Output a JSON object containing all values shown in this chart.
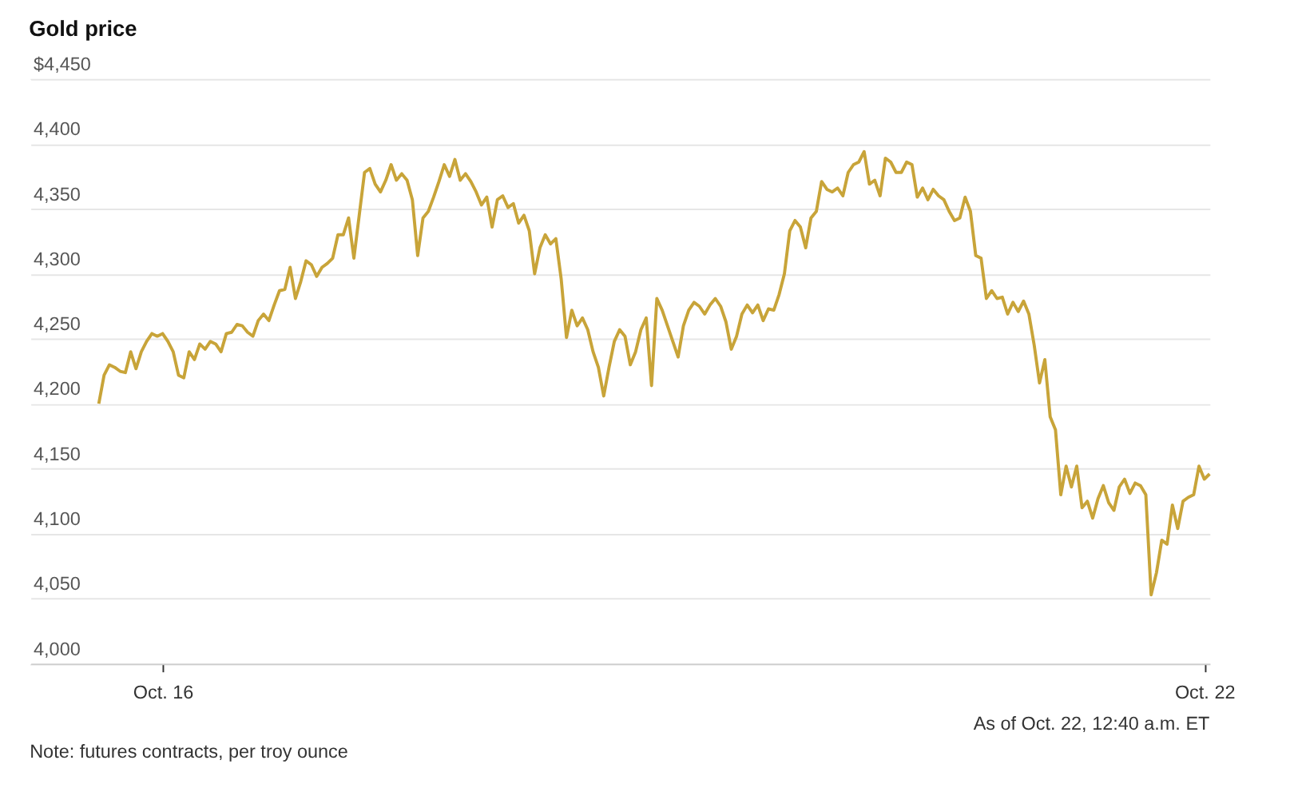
{
  "chart_data": {
    "type": "line",
    "title": "Gold price",
    "annotations": [
      "As of Oct. 22, 12:40 a.m. ET",
      "Note: futures contracts, per troy ounce"
    ],
    "categories": [
      null,
      null,
      null,
      null,
      null,
      null,
      null,
      null,
      null,
      null,
      null,
      null,
      "Oct. 16",
      null,
      null,
      null,
      null,
      null,
      null,
      null,
      null,
      null,
      null,
      null,
      null,
      null,
      null,
      null,
      null,
      null,
      null,
      null,
      null,
      null,
      null,
      null,
      null,
      null,
      null,
      null,
      null,
      null,
      null,
      null,
      null,
      null,
      null,
      null,
      null,
      null,
      null,
      null,
      null,
      null,
      null,
      null,
      null,
      null,
      null,
      null,
      null,
      null,
      null,
      null,
      null,
      null,
      null,
      null,
      null,
      null,
      null,
      null,
      null,
      null,
      null,
      null,
      null,
      null,
      null,
      null,
      null,
      null,
      null,
      null,
      null,
      null,
      null,
      null,
      null,
      null,
      null,
      null,
      null,
      null,
      null,
      null,
      null,
      null,
      null,
      null,
      null,
      null,
      null,
      null,
      null,
      null,
      null,
      null,
      null,
      null,
      null,
      null,
      null,
      null,
      null,
      null,
      null,
      null,
      null,
      null,
      null,
      null,
      null,
      null,
      null,
      null,
      null,
      null,
      null,
      null,
      null,
      null,
      null,
      null,
      null,
      null,
      null,
      null,
      null,
      null,
      null,
      null,
      null,
      null,
      null,
      null,
      null,
      null,
      null,
      null,
      null,
      null,
      null,
      null,
      null,
      null,
      null,
      null,
      null,
      null,
      null,
      null,
      null,
      null,
      null,
      null,
      null,
      null,
      null,
      null,
      null,
      null,
      null,
      null,
      null,
      null,
      null,
      null,
      null,
      null,
      null,
      null,
      null,
      null,
      null,
      null,
      null,
      null,
      null,
      null,
      null,
      null,
      null,
      null,
      null,
      null,
      null,
      null,
      null,
      null,
      null,
      null,
      null,
      null,
      null,
      null,
      null,
      null,
      "Oct. 22",
      null
    ],
    "series": [
      {
        "color": "#c8a439",
        "values": [
          4200,
          4222,
          4230,
          4228,
          4225,
          4224,
          4240,
          4227,
          4240,
          4248,
          4254,
          4252,
          4254,
          4248,
          4240,
          4222,
          4220,
          4240,
          4234,
          4246,
          4242,
          4248,
          4246,
          4240,
          4254,
          4255,
          4261,
          4260,
          4255,
          4252,
          4264,
          4269,
          4264,
          4276,
          4287,
          4288,
          4305,
          4281,
          4294,
          4310,
          4307,
          4298,
          4305,
          4308,
          4312,
          4330,
          4330,
          4343,
          4312,
          4345,
          4378,
          4381,
          4369,
          4363,
          4372,
          4384,
          4372,
          4377,
          4372,
          4357,
          4314,
          4343,
          4348,
          4359,
          4371,
          4384,
          4375,
          4388,
          4372,
          4377,
          4371,
          4363,
          4353,
          4359,
          4336,
          4357,
          4360,
          4351,
          4354,
          4339,
          4345,
          4333,
          4300,
          4320,
          4330,
          4323,
          4327,
          4296,
          4251,
          4272,
          4260,
          4266,
          4257,
          4240,
          4228,
          4206,
          4228,
          4248,
          4257,
          4252,
          4230,
          4240,
          4257,
          4266,
          4214,
          4281,
          4272,
          4260,
          4248,
          4236,
          4260,
          4272,
          4278,
          4275,
          4269,
          4276,
          4281,
          4275,
          4263,
          4242,
          4252,
          4269,
          4276,
          4270,
          4276,
          4264,
          4273,
          4272,
          4284,
          4300,
          4333,
          4341,
          4336,
          4320,
          4343,
          4348,
          4371,
          4365,
          4363,
          4366,
          4360,
          4378,
          4384,
          4386,
          4394,
          4369,
          4372,
          4360,
          4389,
          4386,
          4378,
          4378,
          4386,
          4384,
          4359,
          4366,
          4357,
          4365,
          4360,
          4357,
          4348,
          4341,
          4343,
          4359,
          4348,
          4314,
          4312,
          4281,
          4287,
          4281,
          4282,
          4269,
          4278,
          4271,
          4279,
          4269,
          4245,
          4216,
          4234,
          4190,
          4180,
          4130,
          4152,
          4136,
          4152,
          4120,
          4125,
          4112,
          4127,
          4137,
          4124,
          4118,
          4136,
          4142,
          4131,
          4139,
          4137,
          4130,
          4053,
          4070,
          4095,
          4092,
          4122,
          4104,
          4125,
          4128,
          4130,
          4152,
          4142,
          4146
        ]
      }
    ],
    "ylim": [
      4000,
      4450
    ],
    "yticks": [
      {
        "value": 4000,
        "label": "4,000"
      },
      {
        "value": 4050,
        "label": "4,050"
      },
      {
        "value": 4100,
        "label": "4,100"
      },
      {
        "value": 4150,
        "label": "4,150"
      },
      {
        "value": 4200,
        "label": "4,200"
      },
      {
        "value": 4250,
        "label": "4,250"
      },
      {
        "value": 4300,
        "label": "4,300"
      },
      {
        "value": 4350,
        "label": "4,350"
      },
      {
        "value": 4400,
        "label": "4,400"
      },
      {
        "value": 4450,
        "label": "$4,450"
      }
    ],
    "grid": "y",
    "marker": "none",
    "line_style": "solid"
  }
}
